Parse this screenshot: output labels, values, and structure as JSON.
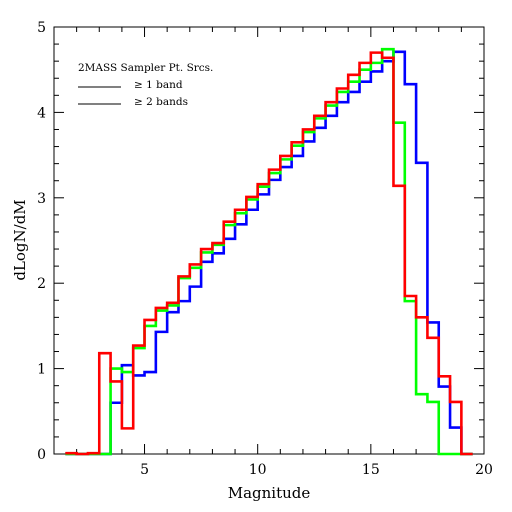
{
  "chart_data": {
    "type": "line",
    "style": "step",
    "xlabel": "Magnitude",
    "ylabel": "dLogN/dM",
    "xlim": [
      1,
      20
    ],
    "ylim": [
      0,
      5
    ],
    "x_ticks": [
      5,
      10,
      15,
      20
    ],
    "y_ticks": [
      0,
      1,
      2,
      3,
      4,
      5
    ],
    "legend": {
      "title": "2MASS Sampler Pt. Srcs.",
      "placement": "top-left",
      "entries": [
        "≥ 1 band",
        "≥ 2 bands"
      ]
    },
    "bin_width": 0.5,
    "series": [
      {
        "color": "#0000ff",
        "bin_starts": [
          1.5,
          2,
          2.5,
          3,
          3.5,
          4,
          4.5,
          5,
          5.5,
          6,
          6.5,
          7,
          7.5,
          8,
          8.5,
          9,
          9.5,
          10,
          10.5,
          11,
          11.5,
          12,
          12.5,
          13,
          13.5,
          14,
          14.5,
          15,
          15.5,
          16,
          16.5,
          17,
          17.5,
          18,
          18.5,
          19
        ],
        "values": [
          0,
          0,
          0,
          0,
          0.6,
          1.04,
          0.92,
          0.96,
          1.43,
          1.66,
          1.79,
          1.96,
          2.25,
          2.35,
          2.52,
          2.69,
          2.86,
          3.04,
          3.21,
          3.36,
          3.49,
          3.66,
          3.82,
          3.96,
          4.12,
          4.24,
          4.36,
          4.48,
          4.6,
          4.71,
          4.33,
          3.41,
          1.54,
          0.79,
          0.31,
          0
        ]
      },
      {
        "color": "#00ff00",
        "bin_starts": [
          1.5,
          2,
          2.5,
          3,
          3.5,
          4,
          4.5,
          5,
          5.5,
          6,
          6.5,
          7,
          7.5,
          8,
          8.5,
          9,
          9.5,
          10,
          10.5,
          11,
          11.5,
          12,
          12.5,
          13,
          13.5,
          14,
          14.5,
          15,
          15.5,
          16,
          16.5,
          17,
          17.5,
          18,
          18.5,
          19
        ],
        "values": [
          0,
          0,
          0,
          0,
          1.0,
          0.96,
          1.24,
          1.5,
          1.68,
          1.74,
          2.06,
          2.18,
          2.36,
          2.45,
          2.68,
          2.82,
          2.98,
          3.13,
          3.29,
          3.45,
          3.61,
          3.77,
          3.93,
          4.08,
          4.24,
          4.36,
          4.5,
          4.58,
          4.74,
          3.88,
          1.79,
          0.7,
          0.61,
          0,
          0,
          0
        ]
      },
      {
        "color": "#ff0000",
        "bin_starts": [
          1.5,
          2,
          2.5,
          3,
          3.5,
          4,
          4.5,
          5,
          5.5,
          6,
          6.5,
          7,
          7.5,
          8,
          8.5,
          9,
          9.5,
          10,
          10.5,
          11,
          11.5,
          12,
          12.5,
          13,
          13.5,
          14,
          14.5,
          15,
          15.5,
          16,
          16.5,
          17,
          17.5,
          18,
          18.5,
          19
        ],
        "values": [
          0.01,
          0,
          0.01,
          1.18,
          0.85,
          0.3,
          1.27,
          1.57,
          1.71,
          1.77,
          2.08,
          2.22,
          2.4,
          2.47,
          2.72,
          2.86,
          3.01,
          3.16,
          3.33,
          3.49,
          3.65,
          3.8,
          3.96,
          4.12,
          4.28,
          4.44,
          4.58,
          4.7,
          4.64,
          3.14,
          1.85,
          1.6,
          1.36,
          0.91,
          0.61,
          0
        ]
      }
    ]
  }
}
